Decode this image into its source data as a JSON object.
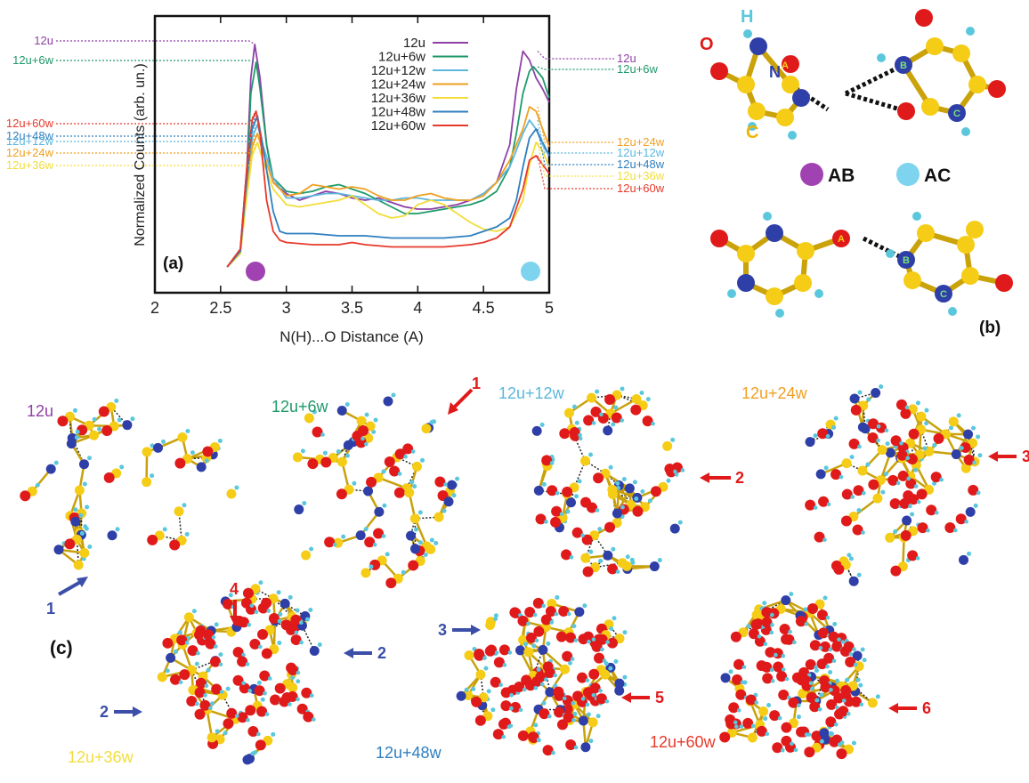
{
  "panel_a": {
    "label": "(a)",
    "ylabel": "Normalized Counts (arb. un.)",
    "xlabel": "N(H)...O Distance (A)",
    "ticks": [
      "2",
      "2.5",
      "3",
      "3.5",
      "4",
      "4.5",
      "5"
    ],
    "left_labels": [
      "12u",
      "12u+6w",
      "12u+60w",
      "12u+48w",
      "12u+12w",
      "12u+24w",
      "12u+36w"
    ],
    "right_labels": [
      "12u",
      "12u+6w",
      "12u+24w",
      "12u+12w",
      "12u+48w",
      "12u+36w",
      "12u+60w"
    ]
  },
  "panel_b": {
    "label": "(b)",
    "atom_labels": {
      "H": "H",
      "O": "O",
      "N": "N",
      "C": "C"
    },
    "site_labels": {
      "A": "A",
      "B": "B",
      "C": "C"
    },
    "legend": {
      "ab": "AB",
      "ac": "AC"
    }
  },
  "panel_c": {
    "label": "(c)",
    "clusters": [
      "12u",
      "12u+6w",
      "12u+12w",
      "12u+24w",
      "12u+36w",
      "12u+48w",
      "12u+60w"
    ],
    "markers": [
      "1",
      "1",
      "2",
      "3",
      "4",
      "2",
      "2",
      "3",
      "5",
      "6"
    ]
  },
  "colors": {
    "12u": "#8e3fa6",
    "12u+6w": "#1e9a6a",
    "12u+12w": "#5bb7dc",
    "12u+24w": "#f0a020",
    "12u+36w": "#f2de3a",
    "12u+48w": "#2f7fc0",
    "12u+60w": "#e8392b",
    "oxygen": "#e01a1a",
    "nitrogen": "#2f3fa8",
    "carbon": "#f5cc16",
    "hydrogen": "#5bc7dd",
    "arrow_red": "#e01a1a",
    "arrow_blue": "#3b4ea8"
  },
  "chart_data": {
    "type": "line",
    "x_range": [
      2,
      5
    ],
    "series": [
      {
        "name": "12u",
        "color": "#8e3fa6",
        "x": [
          2.55,
          2.65,
          2.7,
          2.73,
          2.76,
          2.8,
          2.85,
          2.9,
          3.0,
          3.1,
          3.2,
          3.3,
          3.4,
          3.5,
          3.6,
          3.7,
          3.8,
          3.9,
          4.0,
          4.1,
          4.2,
          4.3,
          4.4,
          4.5,
          4.6,
          4.7,
          4.75,
          4.8,
          4.85,
          4.9,
          4.95,
          5.0
        ],
        "y": [
          0,
          0.08,
          0.45,
          0.85,
          1.0,
          0.85,
          0.55,
          0.38,
          0.33,
          0.3,
          0.32,
          0.34,
          0.33,
          0.31,
          0.3,
          0.31,
          0.29,
          0.27,
          0.26,
          0.26,
          0.27,
          0.28,
          0.3,
          0.33,
          0.38,
          0.55,
          0.8,
          0.97,
          0.93,
          0.85,
          0.8,
          0.74
        ]
      },
      {
        "name": "12u+6w",
        "color": "#1e9a6a",
        "x": [
          2.55,
          2.65,
          2.7,
          2.73,
          2.77,
          2.8,
          2.85,
          2.9,
          3.0,
          3.1,
          3.2,
          3.3,
          3.4,
          3.5,
          3.6,
          3.7,
          3.8,
          3.9,
          4.0,
          4.1,
          4.2,
          4.3,
          4.4,
          4.5,
          4.6,
          4.7,
          4.75,
          4.8,
          4.85,
          4.88,
          4.95,
          5.0
        ],
        "y": [
          0,
          0.07,
          0.4,
          0.78,
          0.92,
          0.8,
          0.55,
          0.4,
          0.34,
          0.33,
          0.34,
          0.36,
          0.37,
          0.35,
          0.33,
          0.3,
          0.27,
          0.24,
          0.24,
          0.25,
          0.26,
          0.27,
          0.28,
          0.3,
          0.34,
          0.45,
          0.6,
          0.78,
          0.88,
          0.9,
          0.85,
          0.76
        ]
      },
      {
        "name": "12u+12w",
        "color": "#5bb7dc",
        "x": [
          2.55,
          2.65,
          2.7,
          2.74,
          2.78,
          2.82,
          2.9,
          3.0,
          3.1,
          3.2,
          3.3,
          3.4,
          3.5,
          3.6,
          3.7,
          3.8,
          3.9,
          4.0,
          4.1,
          4.2,
          4.3,
          4.4,
          4.5,
          4.6,
          4.7,
          4.8,
          4.85,
          4.9,
          4.95,
          5.0
        ],
        "y": [
          0,
          0.06,
          0.35,
          0.58,
          0.64,
          0.55,
          0.4,
          0.31,
          0.31,
          0.32,
          0.33,
          0.33,
          0.32,
          0.31,
          0.3,
          0.3,
          0.31,
          0.31,
          0.3,
          0.3,
          0.3,
          0.3,
          0.33,
          0.38,
          0.45,
          0.6,
          0.66,
          0.62,
          0.55,
          0.5
        ]
      },
      {
        "name": "12u+24w",
        "color": "#f0a020",
        "x": [
          2.55,
          2.65,
          2.7,
          2.74,
          2.78,
          2.82,
          2.9,
          3.0,
          3.1,
          3.2,
          3.3,
          3.4,
          3.5,
          3.6,
          3.7,
          3.8,
          3.9,
          4.0,
          4.1,
          4.2,
          4.3,
          4.4,
          4.5,
          4.6,
          4.7,
          4.8,
          4.85,
          4.9,
          4.95,
          5.0
        ],
        "y": [
          0,
          0.06,
          0.33,
          0.54,
          0.6,
          0.52,
          0.38,
          0.32,
          0.33,
          0.37,
          0.36,
          0.35,
          0.36,
          0.35,
          0.32,
          0.3,
          0.3,
          0.32,
          0.33,
          0.31,
          0.3,
          0.3,
          0.32,
          0.38,
          0.48,
          0.62,
          0.72,
          0.7,
          0.62,
          0.54
        ]
      },
      {
        "name": "12u+36w",
        "color": "#f2de3a",
        "x": [
          2.55,
          2.65,
          2.7,
          2.74,
          2.78,
          2.82,
          2.9,
          3.0,
          3.1,
          3.2,
          3.3,
          3.4,
          3.5,
          3.6,
          3.7,
          3.8,
          3.9,
          4.0,
          4.1,
          4.2,
          4.3,
          4.4,
          4.5,
          4.6,
          4.7,
          4.8,
          4.85,
          4.9,
          4.95,
          5.0
        ],
        "y": [
          0,
          0.06,
          0.32,
          0.5,
          0.56,
          0.48,
          0.35,
          0.28,
          0.27,
          0.28,
          0.29,
          0.3,
          0.32,
          0.28,
          0.24,
          0.22,
          0.23,
          0.28,
          0.3,
          0.28,
          0.24,
          0.2,
          0.17,
          0.16,
          0.18,
          0.3,
          0.46,
          0.56,
          0.52,
          0.45
        ]
      },
      {
        "name": "12u+48w",
        "color": "#2f7fc0",
        "x": [
          2.55,
          2.65,
          2.7,
          2.74,
          2.78,
          2.82,
          2.9,
          2.95,
          3.0,
          3.2,
          3.4,
          3.6,
          3.8,
          4.0,
          4.2,
          4.4,
          4.5,
          4.6,
          4.7,
          4.75,
          4.8,
          4.85,
          4.9,
          4.95,
          5.0
        ],
        "y": [
          0,
          0.07,
          0.4,
          0.62,
          0.68,
          0.55,
          0.25,
          0.16,
          0.15,
          0.15,
          0.14,
          0.14,
          0.13,
          0.13,
          0.13,
          0.14,
          0.16,
          0.18,
          0.22,
          0.3,
          0.45,
          0.58,
          0.62,
          0.56,
          0.5
        ]
      },
      {
        "name": "12u+60w",
        "color": "#e8392b",
        "x": [
          2.55,
          2.65,
          2.7,
          2.74,
          2.77,
          2.8,
          2.85,
          2.9,
          2.95,
          3.0,
          3.2,
          3.4,
          3.5,
          3.6,
          3.8,
          4.0,
          4.2,
          4.4,
          4.5,
          4.6,
          4.7,
          4.8,
          4.85,
          4.9,
          4.95,
          5.0
        ],
        "y": [
          0,
          0.08,
          0.45,
          0.66,
          0.7,
          0.6,
          0.3,
          0.16,
          0.12,
          0.11,
          0.1,
          0.1,
          0.11,
          0.1,
          0.09,
          0.09,
          0.09,
          0.1,
          0.11,
          0.13,
          0.18,
          0.35,
          0.48,
          0.5,
          0.46,
          0.42
        ]
      }
    ]
  }
}
